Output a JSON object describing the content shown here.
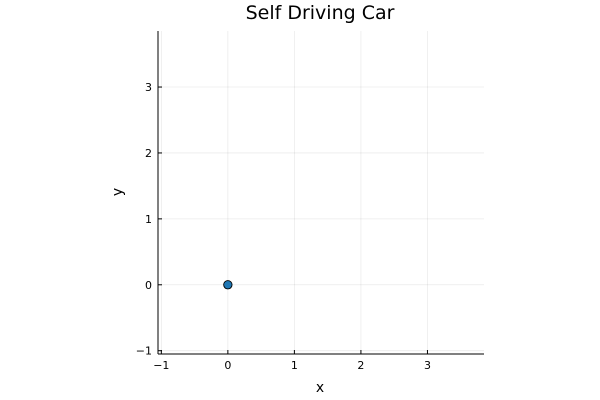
{
  "chart_data": {
    "type": "scatter",
    "title": "Self Driving Car",
    "xlabel": "x",
    "ylabel": "y",
    "xlim": [
      -1.05,
      3.85
    ],
    "ylim": [
      -1.05,
      3.85
    ],
    "xticks": [
      -1,
      0,
      1,
      2,
      3
    ],
    "yticks": [
      -1,
      0,
      1,
      2,
      3
    ],
    "grid": true,
    "legend": "none",
    "series": [
      {
        "color": "#1f77b4",
        "points": [
          {
            "x": 0,
            "y": 0
          }
        ]
      }
    ]
  }
}
